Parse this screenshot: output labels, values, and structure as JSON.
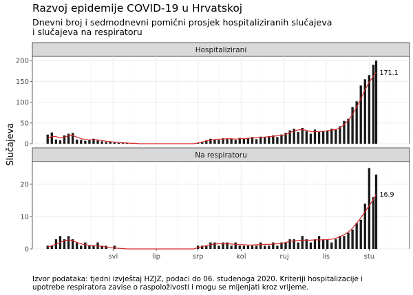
{
  "title": "Razvoj epidemije COVID-19 u Hrvatskoj",
  "subtitle_lines": [
    "Dnevni broj i sedmodnevni pomični prosjek hospitaliziranih slučajeva",
    "i slučajeva na respiratoru"
  ],
  "ylabel": "Slučajeva",
  "caption_lines": [
    "Izvor podataka: tjedni izvještaj HZJZ, podaci do 06. studenoga 2020. Kriteriji hospitalizacije i",
    "upotrebe respiratora zavise o raspoloživosti i mogu se mijenjati kroz vrijeme."
  ],
  "colors": {
    "bar": "#1a1a1a",
    "line": "#d62728",
    "strip": "#d9d9d9",
    "grid": "#ebebeb"
  },
  "chart_data": [
    {
      "type": "bar",
      "facet": "Hospitalizirani",
      "x_ticks": [
        "svi",
        "lip",
        "srp",
        "kol",
        "ruj",
        "lis",
        "stu"
      ],
      "y_ticks": [
        0,
        50,
        100,
        150,
        200
      ],
      "ylim": [
        0,
        210
      ],
      "x": [
        "2020-03-15",
        "2020-03-18",
        "2020-03-21",
        "2020-03-24",
        "2020-03-27",
        "2020-03-30",
        "2020-04-02",
        "2020-04-05",
        "2020-04-08",
        "2020-04-11",
        "2020-04-14",
        "2020-04-17",
        "2020-04-20",
        "2020-04-23",
        "2020-04-26",
        "2020-04-29",
        "2020-05-02",
        "2020-05-05",
        "2020-05-08",
        "2020-05-11",
        "2020-05-14",
        "2020-05-17",
        "2020-05-20",
        "2020-05-23",
        "2020-05-26",
        "2020-05-29",
        "2020-06-01",
        "2020-06-04",
        "2020-06-07",
        "2020-06-10",
        "2020-06-13",
        "2020-06-16",
        "2020-06-19",
        "2020-06-22",
        "2020-06-25",
        "2020-06-28",
        "2020-07-01",
        "2020-07-04",
        "2020-07-07",
        "2020-07-10",
        "2020-07-13",
        "2020-07-16",
        "2020-07-19",
        "2020-07-22",
        "2020-07-25",
        "2020-07-28",
        "2020-07-31",
        "2020-08-03",
        "2020-08-06",
        "2020-08-09",
        "2020-08-12",
        "2020-08-15",
        "2020-08-18",
        "2020-08-21",
        "2020-08-24",
        "2020-08-27",
        "2020-08-30",
        "2020-09-02",
        "2020-09-05",
        "2020-09-08",
        "2020-09-11",
        "2020-09-14",
        "2020-09-17",
        "2020-09-20",
        "2020-09-23",
        "2020-09-26",
        "2020-09-29",
        "2020-10-02",
        "2020-10-05",
        "2020-10-08",
        "2020-10-11",
        "2020-10-14",
        "2020-10-17",
        "2020-10-20",
        "2020-10-23",
        "2020-10-26",
        "2020-10-29",
        "2020-11-01",
        "2020-11-04",
        "2020-11-06"
      ],
      "values": [
        22,
        27,
        10,
        8,
        20,
        24,
        26,
        10,
        9,
        7,
        10,
        12,
        8,
        6,
        4,
        5,
        3,
        2,
        3,
        2,
        1,
        1,
        0,
        0,
        0,
        0,
        0,
        0,
        0,
        0,
        0,
        0,
        0,
        0,
        0,
        0,
        2,
        4,
        8,
        12,
        10,
        9,
        13,
        11,
        12,
        9,
        14,
        12,
        13,
        16,
        11,
        17,
        15,
        18,
        20,
        16,
        22,
        26,
        32,
        36,
        28,
        38,
        30,
        24,
        34,
        28,
        30,
        32,
        36,
        34,
        42,
        55,
        60,
        88,
        102,
        140,
        155,
        165,
        190,
        200
      ],
      "avg": [
        12,
        18,
        17,
        14,
        16,
        19,
        20,
        16,
        12,
        10,
        9,
        10,
        9,
        8,
        6,
        5,
        4,
        3,
        2,
        2,
        1,
        1,
        0,
        0,
        0,
        0,
        0,
        0,
        0,
        0,
        0,
        0,
        0,
        0,
        0,
        0,
        2,
        4,
        7,
        9,
        10,
        11,
        11,
        12,
        12,
        11,
        12,
        12,
        13,
        14,
        14,
        15,
        16,
        17,
        18,
        19,
        20,
        22,
        27,
        31,
        33,
        34,
        32,
        29,
        29,
        29,
        30,
        31,
        33,
        34,
        38,
        46,
        56,
        70,
        88,
        108,
        130,
        148,
        162,
        171.1
      ],
      "end_label": "171.1"
    },
    {
      "type": "bar",
      "facet": "Na respiratoru",
      "x_ticks": [
        "svi",
        "lip",
        "srp",
        "kol",
        "ruj",
        "lis",
        "stu"
      ],
      "y_ticks": [
        0,
        10,
        20
      ],
      "ylim": [
        0,
        27
      ],
      "x": [
        "2020-03-15",
        "2020-03-18",
        "2020-03-21",
        "2020-03-24",
        "2020-03-27",
        "2020-03-30",
        "2020-04-02",
        "2020-04-05",
        "2020-04-08",
        "2020-04-11",
        "2020-04-14",
        "2020-04-17",
        "2020-04-20",
        "2020-04-23",
        "2020-04-26",
        "2020-04-29",
        "2020-05-02",
        "2020-05-05",
        "2020-05-08",
        "2020-05-11",
        "2020-05-14",
        "2020-05-17",
        "2020-05-20",
        "2020-05-23",
        "2020-05-26",
        "2020-05-29",
        "2020-06-01",
        "2020-06-04",
        "2020-06-07",
        "2020-06-10",
        "2020-06-13",
        "2020-06-16",
        "2020-06-19",
        "2020-06-22",
        "2020-06-25",
        "2020-06-28",
        "2020-07-01",
        "2020-07-04",
        "2020-07-07",
        "2020-07-10",
        "2020-07-13",
        "2020-07-16",
        "2020-07-19",
        "2020-07-22",
        "2020-07-25",
        "2020-07-28",
        "2020-07-31",
        "2020-08-03",
        "2020-08-06",
        "2020-08-09",
        "2020-08-12",
        "2020-08-15",
        "2020-08-18",
        "2020-08-21",
        "2020-08-24",
        "2020-08-27",
        "2020-08-30",
        "2020-09-02",
        "2020-09-05",
        "2020-09-08",
        "2020-09-11",
        "2020-09-14",
        "2020-09-17",
        "2020-09-20",
        "2020-09-23",
        "2020-09-26",
        "2020-09-29",
        "2020-10-02",
        "2020-10-05",
        "2020-10-08",
        "2020-10-11",
        "2020-10-14",
        "2020-10-17",
        "2020-10-20",
        "2020-10-23",
        "2020-10-26",
        "2020-10-29",
        "2020-11-01",
        "2020-11-04",
        "2020-11-06"
      ],
      "values": [
        1,
        1,
        3,
        4,
        3,
        4,
        3,
        2,
        1,
        2,
        1,
        1,
        2,
        1,
        1,
        0,
        1,
        0,
        0,
        0,
        0,
        0,
        0,
        0,
        0,
        0,
        0,
        0,
        0,
        0,
        0,
        0,
        0,
        0,
        0,
        0,
        1,
        1,
        1,
        2,
        2,
        1,
        2,
        2,
        1,
        2,
        1,
        1,
        1,
        1,
        1,
        2,
        1,
        1,
        2,
        1,
        2,
        2,
        3,
        3,
        2,
        4,
        3,
        2,
        3,
        4,
        3,
        3,
        2,
        3,
        4,
        4,
        5,
        6,
        8,
        9,
        14,
        25,
        16,
        23
      ],
      "avg": [
        0.5,
        1,
        1.5,
        2,
        2.5,
        2.8,
        2.6,
        2,
        1.6,
        1.3,
        1.1,
        1,
        0.9,
        0.8,
        0.6,
        0.4,
        0.3,
        0.2,
        0.1,
        0,
        0,
        0,
        0,
        0,
        0,
        0,
        0,
        0,
        0,
        0,
        0,
        0,
        0,
        0,
        0,
        0,
        0.4,
        0.7,
        1,
        1.3,
        1.5,
        1.6,
        1.6,
        1.6,
        1.5,
        1.4,
        1.3,
        1.3,
        1.2,
        1.2,
        1.3,
        1.3,
        1.4,
        1.4,
        1.5,
        1.6,
        1.7,
        2,
        2.3,
        2.5,
        2.6,
        2.7,
        2.7,
        2.7,
        2.8,
        2.8,
        2.8,
        2.9,
        3,
        3.3,
        3.8,
        4.4,
        5.2,
        6.4,
        8,
        9.6,
        11.5,
        13.4,
        15.2,
        16.9
      ],
      "end_label": "16.9"
    }
  ]
}
